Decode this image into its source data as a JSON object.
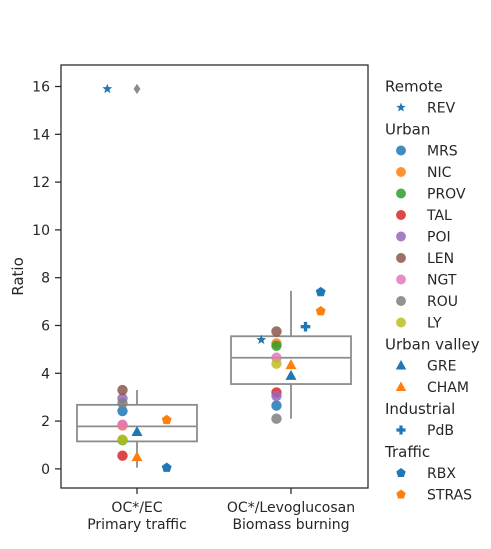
{
  "chart_data": {
    "type": "box+strip",
    "ylabel": "Ratio",
    "ylim": [
      -0.8,
      16.9
    ],
    "yticks": [
      0,
      2,
      4,
      6,
      8,
      10,
      12,
      14,
      16
    ],
    "categories": [
      {
        "line1": "OC*/EC",
        "line2": "Primary traffic"
      },
      {
        "line1": "OC*/Levoglucosan",
        "line2": "Biomass burning"
      }
    ],
    "boxes": [
      {
        "category": 0,
        "q1": 1.15,
        "median": 1.78,
        "q3": 2.68,
        "whisker_low": 0.05,
        "whisker_high": 3.3,
        "outliers": [
          15.9
        ]
      },
      {
        "category": 1,
        "q1": 3.55,
        "median": 4.65,
        "q3": 5.55,
        "whisker_low": 2.1,
        "whisker_high": 7.45,
        "outliers": []
      }
    ],
    "legend": [
      {
        "group": "Remote",
        "items": [
          {
            "label": "REV",
            "marker": "star",
            "color": "#1f77b4"
          }
        ]
      },
      {
        "group": "Urban",
        "items": [
          {
            "label": "MRS",
            "marker": "circle",
            "color": "#1f77b4"
          },
          {
            "label": "NIC",
            "marker": "circle",
            "color": "#ff7f0e"
          },
          {
            "label": "PROV",
            "marker": "circle",
            "color": "#2ca02c"
          },
          {
            "label": "TAL",
            "marker": "circle",
            "color": "#d62728"
          },
          {
            "label": "POI",
            "marker": "circle",
            "color": "#9467bd"
          },
          {
            "label": "LEN",
            "marker": "circle",
            "color": "#8c564b"
          },
          {
            "label": "NGT",
            "marker": "circle",
            "color": "#e377c2"
          },
          {
            "label": "ROU",
            "marker": "circle",
            "color": "#7f7f7f"
          },
          {
            "label": "LY",
            "marker": "circle",
            "color": "#bcbd22"
          }
        ]
      },
      {
        "group": "Urban valley",
        "items": [
          {
            "label": "GRE",
            "marker": "triangle",
            "color": "#1f77b4"
          },
          {
            "label": "CHAM",
            "marker": "triangle",
            "color": "#ff7f0e"
          }
        ]
      },
      {
        "group": "Industrial",
        "items": [
          {
            "label": "PdB",
            "marker": "plus",
            "color": "#1f77b4"
          }
        ]
      },
      {
        "group": "Traffic",
        "items": [
          {
            "label": "RBX",
            "marker": "pentagon",
            "color": "#1f77b4"
          },
          {
            "label": "STRAS",
            "marker": "pentagon",
            "color": "#ff7f0e"
          }
        ]
      }
    ],
    "points": [
      {
        "category": 0,
        "site": "REV",
        "y": 15.9,
        "offset": -0.45
      },
      {
        "category": 0,
        "site": "MRS",
        "y": 2.42,
        "offset": -0.22
      },
      {
        "category": 0,
        "site": "NIC",
        "y": 1.82,
        "offset": -0.22
      },
      {
        "category": 0,
        "site": "PROV",
        "y": 1.2,
        "offset": -0.22
      },
      {
        "category": 0,
        "site": "TAL",
        "y": 0.55,
        "offset": -0.22
      },
      {
        "category": 0,
        "site": "POI",
        "y": 2.95,
        "offset": -0.22
      },
      {
        "category": 0,
        "site": "LEN",
        "y": 3.3,
        "offset": -0.22
      },
      {
        "category": 0,
        "site": "NGT",
        "y": 1.85,
        "offset": -0.22
      },
      {
        "category": 0,
        "site": "ROU",
        "y": 2.75,
        "offset": -0.22
      },
      {
        "category": 0,
        "site": "LY",
        "y": 1.22,
        "offset": -0.22
      },
      {
        "category": 0,
        "site": "GRE",
        "y": 1.55,
        "offset": 0.0
      },
      {
        "category": 0,
        "site": "CHAM",
        "y": 0.5,
        "offset": 0.0
      },
      {
        "category": 0,
        "site": "RBX",
        "y": 0.05,
        "offset": 0.45
      },
      {
        "category": 0,
        "site": "STRAS",
        "y": 2.05,
        "offset": 0.45
      },
      {
        "category": 1,
        "site": "REV",
        "y": 5.4,
        "offset": -0.45
      },
      {
        "category": 1,
        "site": "MRS",
        "y": 2.65,
        "offset": -0.22
      },
      {
        "category": 1,
        "site": "NIC",
        "y": 5.25,
        "offset": -0.22
      },
      {
        "category": 1,
        "site": "PROV",
        "y": 5.15,
        "offset": -0.22
      },
      {
        "category": 1,
        "site": "TAL",
        "y": 3.2,
        "offset": -0.22
      },
      {
        "category": 1,
        "site": "POI",
        "y": 3.05,
        "offset": -0.22
      },
      {
        "category": 1,
        "site": "LEN",
        "y": 5.75,
        "offset": -0.22
      },
      {
        "category": 1,
        "site": "NGT",
        "y": 4.65,
        "offset": -0.22
      },
      {
        "category": 1,
        "site": "ROU",
        "y": 2.1,
        "offset": -0.22
      },
      {
        "category": 1,
        "site": "LY",
        "y": 4.4,
        "offset": -0.22
      },
      {
        "category": 1,
        "site": "GRE",
        "y": 3.9,
        "offset": 0.0
      },
      {
        "category": 1,
        "site": "CHAM",
        "y": 4.35,
        "offset": 0.0
      },
      {
        "category": 1,
        "site": "PdB",
        "y": 5.95,
        "offset": 0.22
      },
      {
        "category": 1,
        "site": "RBX",
        "y": 7.4,
        "offset": 0.45
      },
      {
        "category": 1,
        "site": "STRAS",
        "y": 6.6,
        "offset": 0.45
      }
    ]
  }
}
